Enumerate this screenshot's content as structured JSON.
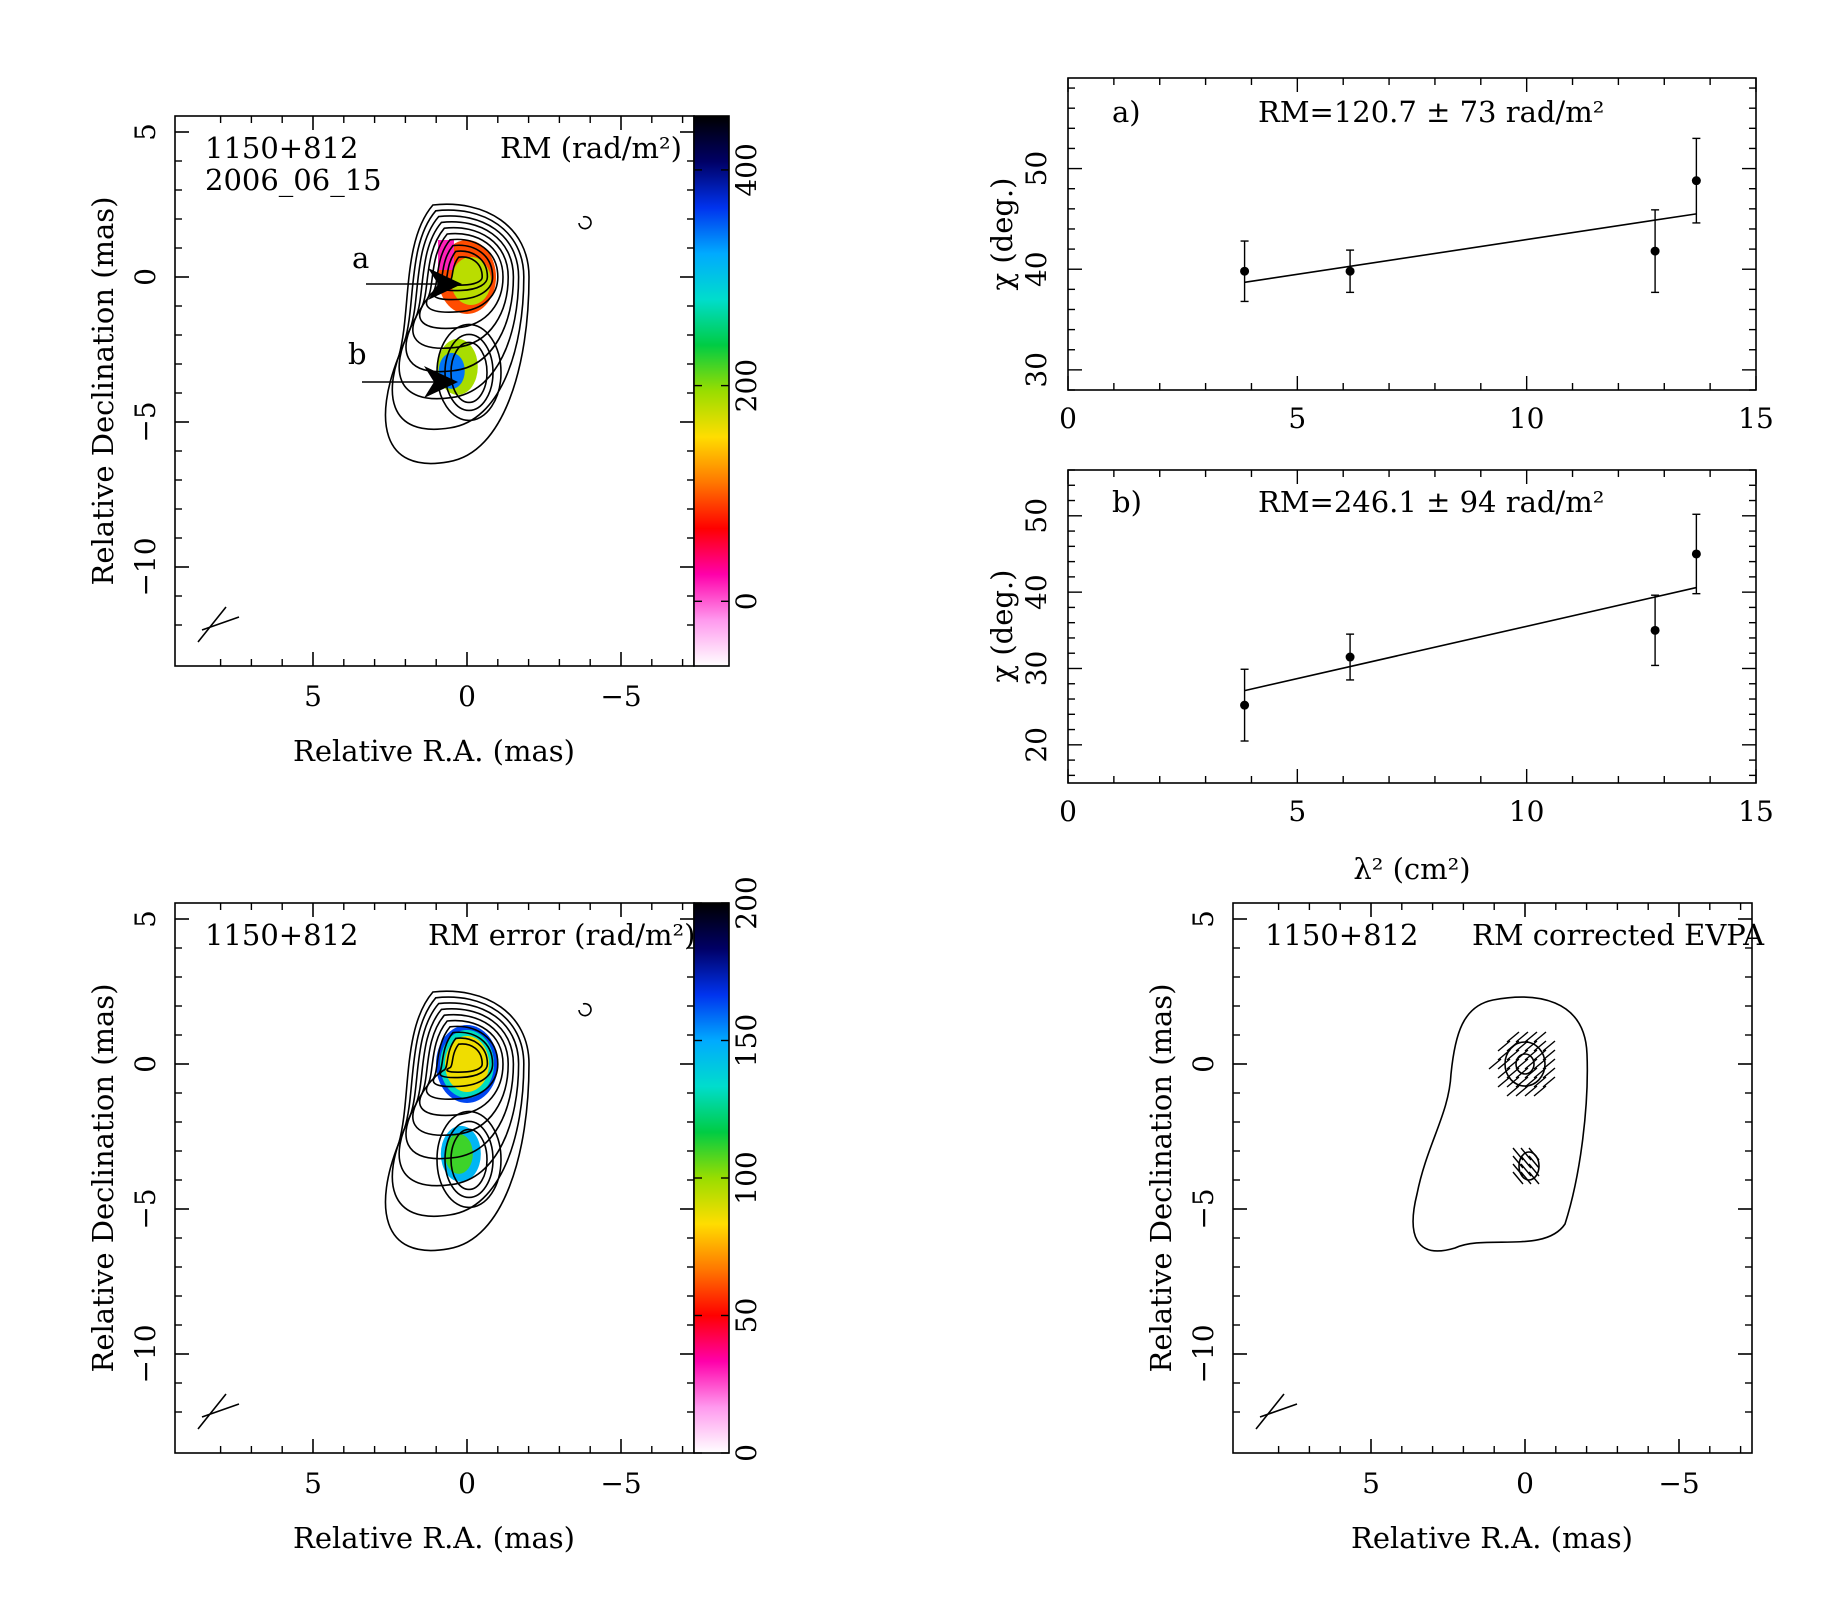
{
  "colors": {
    "axis": "#000000",
    "background": "#ffffff"
  },
  "colormap_stops": [
    "#ffffff",
    "#ff99ee",
    "#ff00aa",
    "#ff0000",
    "#ff7700",
    "#ffdd00",
    "#99dd00",
    "#00cc44",
    "#00ddcc",
    "#00aaff",
    "#0033ee",
    "#000066",
    "#000000"
  ],
  "maps": {
    "rm_map": {
      "source": "1150+812",
      "epoch": "2006_06_15",
      "quantity": "RM (rad/m²)",
      "xlabel": "Relative R.A. (mas)",
      "ylabel": "Relative Declination (mas)",
      "xticks": [
        "5",
        "0",
        "−5"
      ],
      "yticks": [
        "5",
        "0",
        "−5",
        "−10"
      ],
      "colorbar": {
        "ticks": [
          "0",
          "200",
          "400"
        ],
        "range": [
          -60,
          450
        ],
        "tick_values": [
          0,
          200,
          400
        ]
      },
      "markers": [
        {
          "label": "a"
        },
        {
          "label": "b"
        }
      ],
      "features": {
        "a_component": {
          "x": 0,
          "y": 0,
          "value": 120
        },
        "b_component": {
          "x": 0.3,
          "y": -3.1,
          "value": 250
        }
      }
    },
    "rm_error_map": {
      "source": "1150+812",
      "quantity": "RM error (rad/m²)",
      "xlabel": "Relative R.A. (mas)",
      "ylabel": "Relative Declination (mas)",
      "xticks": [
        "5",
        "0",
        "−5"
      ],
      "yticks": [
        "5",
        "0",
        "−5",
        "−10"
      ],
      "colorbar": {
        "ticks": [
          "0",
          "50",
          "100",
          "150",
          "200"
        ],
        "range": [
          0,
          200
        ],
        "tick_values": [
          0,
          50,
          100,
          150,
          200
        ]
      },
      "features": {
        "a_component": {
          "x": 0,
          "y": 0,
          "value": 80
        },
        "b_component": {
          "x": 0.2,
          "y": -3.1,
          "value": 110
        }
      }
    },
    "evpa_map": {
      "source": "1150+812",
      "quantity": "RM corrected EVPA",
      "xlabel": "Relative R.A. (mas)",
      "ylabel": "Relative Declination (mas)",
      "xticks": [
        "5",
        "0",
        "−5"
      ],
      "yticks": [
        "5",
        "0",
        "−5",
        "−10"
      ]
    }
  },
  "chart_data": [
    {
      "type": "scatter",
      "panel": "a)",
      "annotation": "RM=120.7 ± 73 rad/m²",
      "xlabel": "",
      "ylabel": "χ (deg.)",
      "xlim": [
        0,
        15
      ],
      "ylim": [
        28,
        59
      ],
      "xticks": [
        0,
        5,
        10,
        15
      ],
      "yticks": [
        30,
        40,
        50
      ],
      "points": [
        {
          "x": 3.85,
          "y": 39.8,
          "err": 3.0
        },
        {
          "x": 6.15,
          "y": 39.8,
          "err": 2.1
        },
        {
          "x": 12.8,
          "y": 41.8,
          "err": 4.1
        },
        {
          "x": 13.7,
          "y": 48.8,
          "err": 4.2
        }
      ],
      "fit": [
        [
          3.85,
          38.7
        ],
        [
          13.7,
          45.5
        ]
      ]
    },
    {
      "type": "scatter",
      "panel": "b)",
      "annotation": "RM=246.1 ± 94 rad/m²",
      "xlabel": "λ² (cm²)",
      "ylabel": "χ (deg.)",
      "xlim": [
        0,
        15
      ],
      "ylim": [
        15,
        56
      ],
      "xticks": [
        0,
        5,
        10,
        15
      ],
      "yticks": [
        20,
        30,
        40,
        50
      ],
      "points": [
        {
          "x": 3.85,
          "y": 25.2,
          "err": 4.7
        },
        {
          "x": 6.15,
          "y": 31.5,
          "err": 3.0
        },
        {
          "x": 12.8,
          "y": 35.0,
          "err": 4.6
        },
        {
          "x": 13.7,
          "y": 45.0,
          "err": 5.2
        }
      ],
      "fit": [
        [
          3.85,
          27.1
        ],
        [
          13.7,
          40.6
        ]
      ]
    }
  ]
}
